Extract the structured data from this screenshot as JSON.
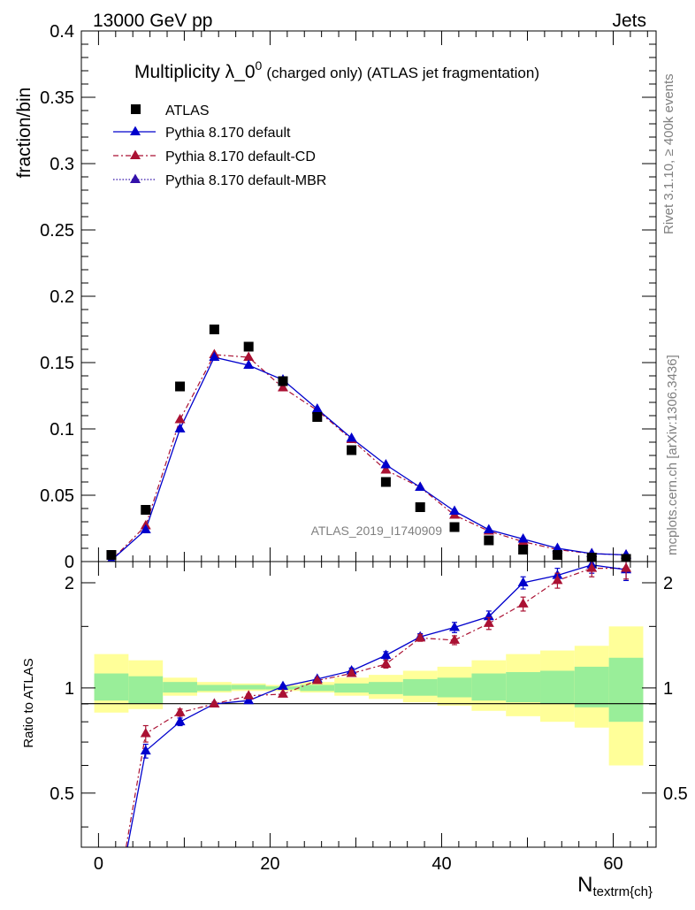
{
  "header": {
    "left": "13000 GeV pp",
    "right": "Jets"
  },
  "side_labels": {
    "rivet": "Rivet 3.1.10, ≥ 400k events",
    "mcplots": "mcplots.cern.ch [arXiv:1306.3436]"
  },
  "chart_data": [
    {
      "type": "scatter",
      "title": "Multiplicity λ_0",
      "title_sup": "0",
      "title_suffix": "(charged only) (ATLAS jet fragmentation)",
      "ylabel": "fraction/bin",
      "watermark": "ATLAS_2019_I1740909",
      "xlim": [
        -2,
        65
      ],
      "ylim": [
        0,
        0.4
      ],
      "y_ticks": [
        "0",
        "0.05",
        "0.1",
        "0.15",
        "0.2",
        "0.25",
        "0.3",
        "0.35",
        "0.4"
      ],
      "x": [
        1.5,
        5.5,
        9.5,
        13.5,
        17.5,
        21.5,
        25.5,
        29.5,
        33.5,
        37.5,
        41.5,
        45.5,
        49.5,
        53.5,
        57.5,
        61.5
      ],
      "series": [
        {
          "name": "ATLAS",
          "color": "#000000",
          "marker": "square",
          "values": [
            0.005,
            0.039,
            0.132,
            0.175,
            0.162,
            0.136,
            0.109,
            0.084,
            0.06,
            0.041,
            0.026,
            0.016,
            0.009,
            0.005,
            0.003,
            0.002
          ]
        },
        {
          "name": "Pythia 8.170 default",
          "color": "#0000cc",
          "marker": "triangle",
          "line": "solid",
          "values": [
            0.001,
            0.024,
            0.1,
            0.154,
            0.148,
            0.137,
            0.115,
            0.093,
            0.073,
            0.056,
            0.038,
            0.024,
            0.017,
            0.01,
            0.006,
            0.005
          ]
        },
        {
          "name": "Pythia 8.170 default-CD",
          "color": "#aa1133",
          "marker": "triangle",
          "line": "dashdot",
          "values": [
            0.001,
            0.027,
            0.107,
            0.156,
            0.154,
            0.131,
            0.114,
            0.092,
            0.069,
            0.056,
            0.035,
            0.023,
            0.015,
            0.009,
            0.006,
            0.005
          ]
        },
        {
          "name": "Pythia 8.170 default-MBR",
          "color": "#3311aa",
          "marker": "triangle",
          "line": "dotted",
          "values": []
        }
      ]
    },
    {
      "type": "line",
      "ylabel": "Ratio to ATLAS",
      "xlabel": "N",
      "xlabel_sub": "textrm{ch}",
      "xlim": [
        -2,
        65
      ],
      "ylim": [
        0.35,
        2.3
      ],
      "x_ticks": [
        "0",
        "20",
        "40",
        "60"
      ],
      "y_ticks": [
        "0.5",
        "1",
        "2"
      ],
      "bins": [
        [
          -0.5,
          3.5
        ],
        [
          3.5,
          7.5
        ],
        [
          7.5,
          11.5
        ],
        [
          11.5,
          15.5
        ],
        [
          15.5,
          19.5
        ],
        [
          19.5,
          23.5
        ],
        [
          23.5,
          27.5
        ],
        [
          27.5,
          31.5
        ],
        [
          31.5,
          35.5
        ],
        [
          35.5,
          39.5
        ],
        [
          39.5,
          43.5
        ],
        [
          43.5,
          47.5
        ],
        [
          47.5,
          51.5
        ],
        [
          51.5,
          55.5
        ],
        [
          55.5,
          59.5
        ],
        [
          59.5,
          63.5
        ]
      ],
      "band_stat": [
        [
          0.92,
          1.1
        ],
        [
          0.9,
          1.08
        ],
        [
          0.97,
          1.04
        ],
        [
          0.98,
          1.02
        ],
        [
          0.99,
          1.02
        ],
        [
          0.99,
          1.01
        ],
        [
          0.98,
          1.02
        ],
        [
          0.97,
          1.03
        ],
        [
          0.96,
          1.04
        ],
        [
          0.95,
          1.06
        ],
        [
          0.94,
          1.07
        ],
        [
          0.92,
          1.1
        ],
        [
          0.91,
          1.11
        ],
        [
          0.9,
          1.12
        ],
        [
          0.88,
          1.15
        ],
        [
          0.8,
          1.22
        ]
      ],
      "band_total": [
        [
          0.85,
          1.25
        ],
        [
          0.87,
          1.2
        ],
        [
          0.95,
          1.07
        ],
        [
          0.97,
          1.04
        ],
        [
          0.98,
          1.03
        ],
        [
          0.98,
          1.02
        ],
        [
          0.97,
          1.04
        ],
        [
          0.95,
          1.07
        ],
        [
          0.93,
          1.09
        ],
        [
          0.91,
          1.12
        ],
        [
          0.89,
          1.15
        ],
        [
          0.86,
          1.2
        ],
        [
          0.83,
          1.25
        ],
        [
          0.8,
          1.28
        ],
        [
          0.77,
          1.32
        ],
        [
          0.6,
          1.5
        ]
      ],
      "x": [
        1.5,
        5.5,
        9.5,
        13.5,
        17.5,
        21.5,
        25.5,
        29.5,
        33.5,
        37.5,
        41.5,
        45.5,
        49.5,
        53.5,
        57.5,
        61.5
      ],
      "series": [
        {
          "name": "Pythia 8.170 default",
          "color": "#0000cc",
          "values": [
            0.2,
            0.66,
            0.8,
            0.9,
            0.92,
            1.01,
            1.06,
            1.12,
            1.24,
            1.4,
            1.49,
            1.6,
            2.0,
            2.1,
            2.25,
            2.18
          ],
          "errors": [
            0,
            0.03,
            0.02,
            0.01,
            0.01,
            0.01,
            0.01,
            0.02,
            0.03,
            0.03,
            0.05,
            0.06,
            0.08,
            0.1,
            0.12,
            0.15
          ]
        },
        {
          "name": "Pythia 8.170 default-CD",
          "color": "#aa1133",
          "values": [
            0.2,
            0.74,
            0.85,
            0.9,
            0.95,
            0.96,
            1.05,
            1.1,
            1.17,
            1.39,
            1.37,
            1.53,
            1.74,
            2.03,
            2.2,
            2.2
          ],
          "errors": [
            0,
            0.04,
            0.02,
            0.01,
            0.01,
            0.01,
            0.01,
            0.02,
            0.03,
            0.03,
            0.04,
            0.06,
            0.08,
            0.1,
            0.12,
            0.15
          ]
        }
      ]
    }
  ]
}
